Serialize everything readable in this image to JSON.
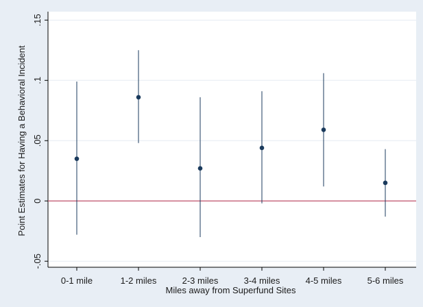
{
  "chart_data": {
    "type": "scatter",
    "title": "",
    "xlabel": "Miles away from Superfund Sites",
    "ylabel": "Point Estimates for Having a Behavioral Incident",
    "categories": [
      "0-1 mile",
      "1-2 miles",
      "2-3 miles",
      "3-4 miles",
      "4-5 miles",
      "5-6 miles"
    ],
    "series": [
      {
        "values": [
          0.035,
          0.086,
          0.027,
          0.044,
          0.059,
          0.015
        ],
        "ci_low": [
          -0.028,
          0.048,
          -0.03,
          -0.002,
          0.012,
          -0.013
        ],
        "ci_high": [
          0.099,
          0.125,
          0.086,
          0.091,
          0.106,
          0.043
        ]
      }
    ],
    "yticks": [
      -0.05,
      0,
      0.05,
      0.1,
      0.15
    ],
    "ytick_labels": [
      "-.05",
      "0",
      ".05",
      ".1",
      ".15"
    ],
    "ylim": [
      -0.055,
      0.157
    ],
    "reference_line": {
      "y": 0
    },
    "grid": true,
    "colors": {
      "background": "#e8eef5",
      "plot_area": "#ffffff",
      "point": "#1a3a5c",
      "error_bar": "#1a3a5c",
      "reference_line": "#c0506a",
      "grid": "#e6ecf2"
    }
  }
}
